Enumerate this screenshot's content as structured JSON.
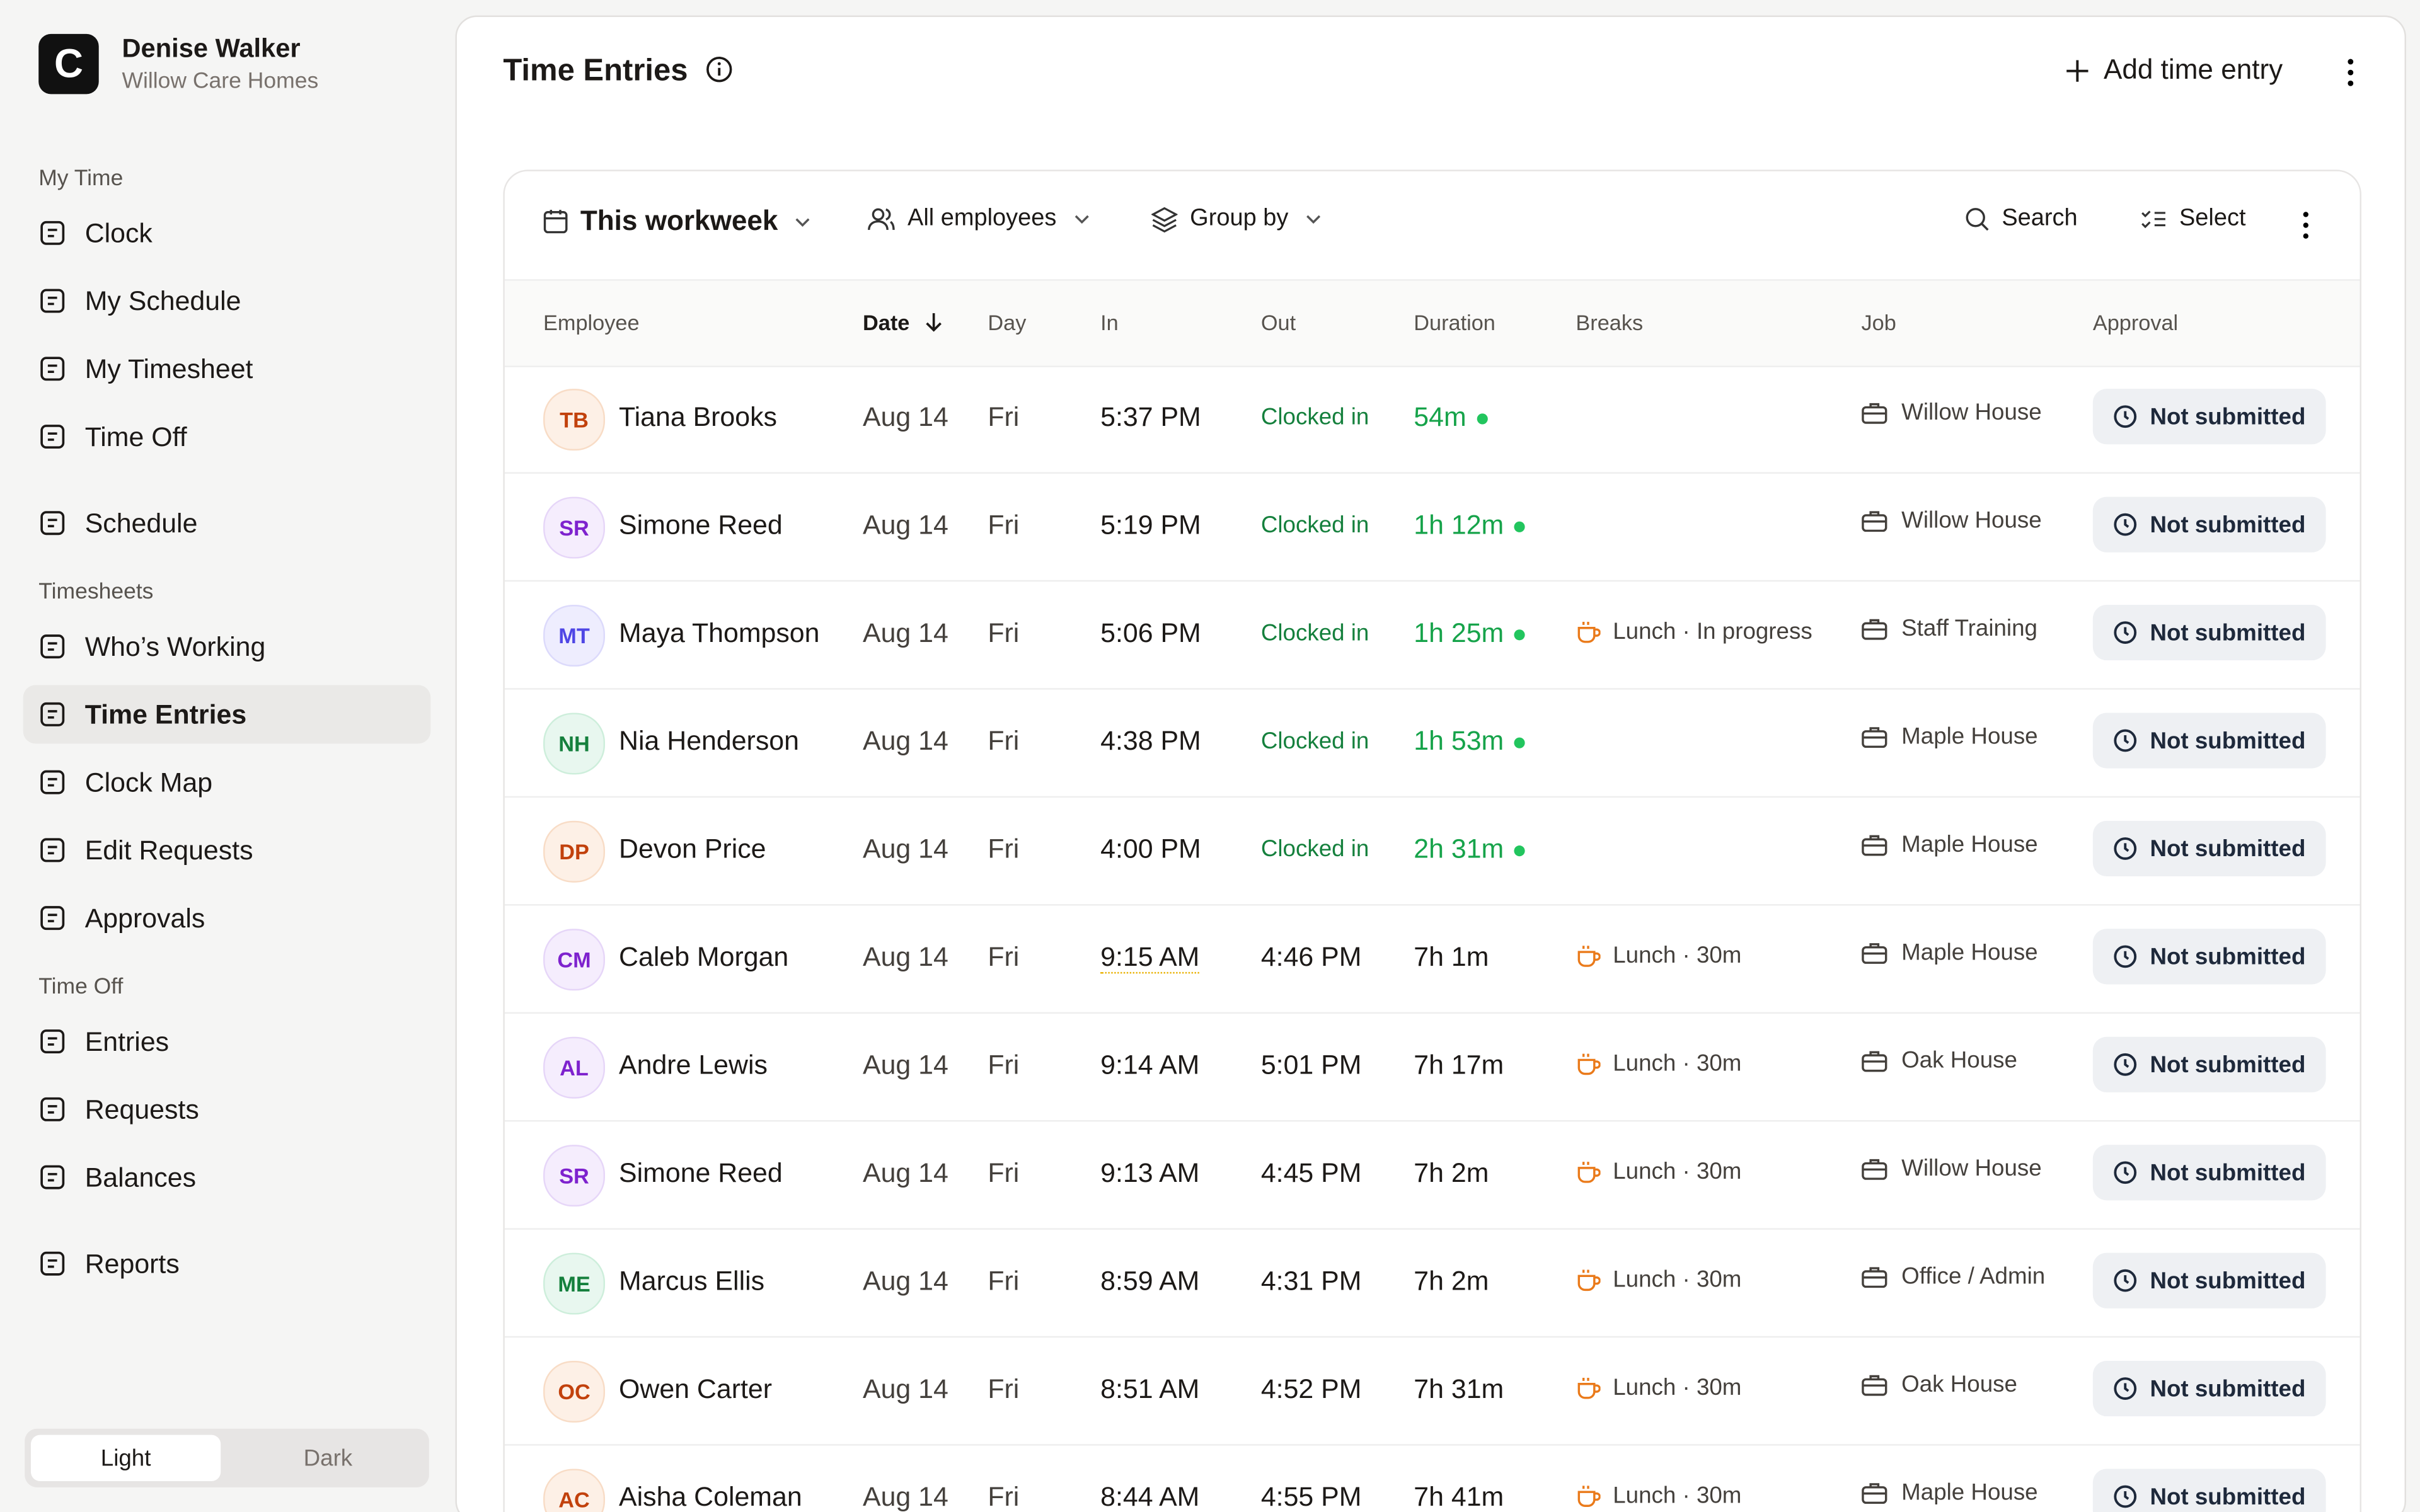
{
  "user": {
    "initial": "C",
    "name": "Denise Walker",
    "org": "Willow Care Homes"
  },
  "sidebar": {
    "groups": [
      {
        "title": "My Time",
        "items": [
          {
            "label": "Clock"
          },
          {
            "label": "My Schedule"
          },
          {
            "label": "My Timesheet"
          },
          {
            "label": "Time Off"
          }
        ]
      },
      {
        "items": [
          {
            "label": "Schedule"
          }
        ]
      },
      {
        "title": "Timesheets",
        "items": [
          {
            "label": "Who’s Working"
          },
          {
            "label": "Time Entries",
            "active": true
          },
          {
            "label": "Clock Map"
          },
          {
            "label": "Edit Requests"
          },
          {
            "label": "Approvals"
          }
        ]
      },
      {
        "title": "Time Off",
        "items": [
          {
            "label": "Entries"
          },
          {
            "label": "Requests"
          },
          {
            "label": "Balances"
          }
        ]
      },
      {
        "items": [
          {
            "label": "Reports"
          }
        ]
      }
    ],
    "theme": [
      "Light",
      "Dark"
    ]
  },
  "header": {
    "title": "Time Entries",
    "action": "Add time entry"
  },
  "toolbar": {
    "period": "This workweek",
    "employees": "All employees",
    "group": "Group by",
    "search": "Search",
    "select": "Select"
  },
  "table": {
    "columns": [
      "Employee",
      "Date",
      "Day",
      "In",
      "Out",
      "Duration",
      "Breaks",
      "Job",
      "Approval"
    ],
    "rows": [
      {
        "initials": "TB",
        "tone": "orange",
        "name": "Tiana Brooks",
        "date": "Aug 14",
        "day": "Fri",
        "in": "5:37 PM",
        "out": "Clocked in",
        "duration": "54m",
        "live": true,
        "job": "Willow House",
        "approval": "Not submitted"
      },
      {
        "initials": "SR",
        "tone": "purple",
        "name": "Simone Reed",
        "date": "Aug 14",
        "day": "Fri",
        "in": "5:19 PM",
        "out": "Clocked in",
        "duration": "1h 12m",
        "live": true,
        "job": "Willow House",
        "approval": "Not submitted"
      },
      {
        "initials": "MT",
        "tone": "violet",
        "name": "Maya Thompson",
        "date": "Aug 14",
        "day": "Fri",
        "in": "5:06 PM",
        "out": "Clocked in",
        "duration": "1h 25m",
        "live": true,
        "breaks": "Lunch · In progress",
        "job": "Staff Training",
        "approval": "Not submitted"
      },
      {
        "initials": "NH",
        "tone": "green",
        "name": "Nia Henderson",
        "date": "Aug 14",
        "day": "Fri",
        "in": "4:38 PM",
        "out": "Clocked in",
        "duration": "1h 53m",
        "live": true,
        "job": "Maple House",
        "approval": "Not submitted"
      },
      {
        "initials": "DP",
        "tone": "orange",
        "name": "Devon Price",
        "date": "Aug 14",
        "day": "Fri",
        "in": "4:00 PM",
        "out": "Clocked in",
        "duration": "2h 31m",
        "live": true,
        "job": "Maple House",
        "approval": "Not submitted"
      },
      {
        "initials": "CM",
        "tone": "purple",
        "name": "Caleb Morgan",
        "date": "Aug 14",
        "day": "Fri",
        "in": "9:15 AM",
        "flagged": true,
        "out": "4:46 PM",
        "duration": "7h 1m",
        "breaks": "Lunch · 30m",
        "job": "Maple House",
        "approval": "Not submitted"
      },
      {
        "initials": "AL",
        "tone": "purple",
        "name": "Andre Lewis",
        "date": "Aug 14",
        "day": "Fri",
        "in": "9:14 AM",
        "out": "5:01 PM",
        "duration": "7h 17m",
        "breaks": "Lunch · 30m",
        "job": "Oak House",
        "approval": "Not submitted"
      },
      {
        "initials": "SR",
        "tone": "purple",
        "name": "Simone Reed",
        "date": "Aug 14",
        "day": "Fri",
        "in": "9:13 AM",
        "out": "4:45 PM",
        "duration": "7h 2m",
        "breaks": "Lunch · 30m",
        "job": "Willow House",
        "approval": "Not submitted"
      },
      {
        "initials": "ME",
        "tone": "green",
        "name": "Marcus Ellis",
        "date": "Aug 14",
        "day": "Fri",
        "in": "8:59 AM",
        "out": "4:31 PM",
        "duration": "7h 2m",
        "breaks": "Lunch · 30m",
        "job": "Office / Admin",
        "approval": "Not submitted"
      },
      {
        "initials": "OC",
        "tone": "orange",
        "name": "Owen Carter",
        "date": "Aug 14",
        "day": "Fri",
        "in": "8:51 AM",
        "out": "4:52 PM",
        "duration": "7h 31m",
        "breaks": "Lunch · 30m",
        "job": "Oak House",
        "approval": "Not submitted"
      },
      {
        "initials": "AC",
        "tone": "orange",
        "name": "Aisha Coleman",
        "date": "Aug 14",
        "day": "Fri",
        "in": "8:44 AM",
        "out": "4:55 PM",
        "duration": "7h 41m",
        "breaks": "Lunch · 30m",
        "job": "Maple House",
        "approval": "Not submitted"
      }
    ]
  }
}
